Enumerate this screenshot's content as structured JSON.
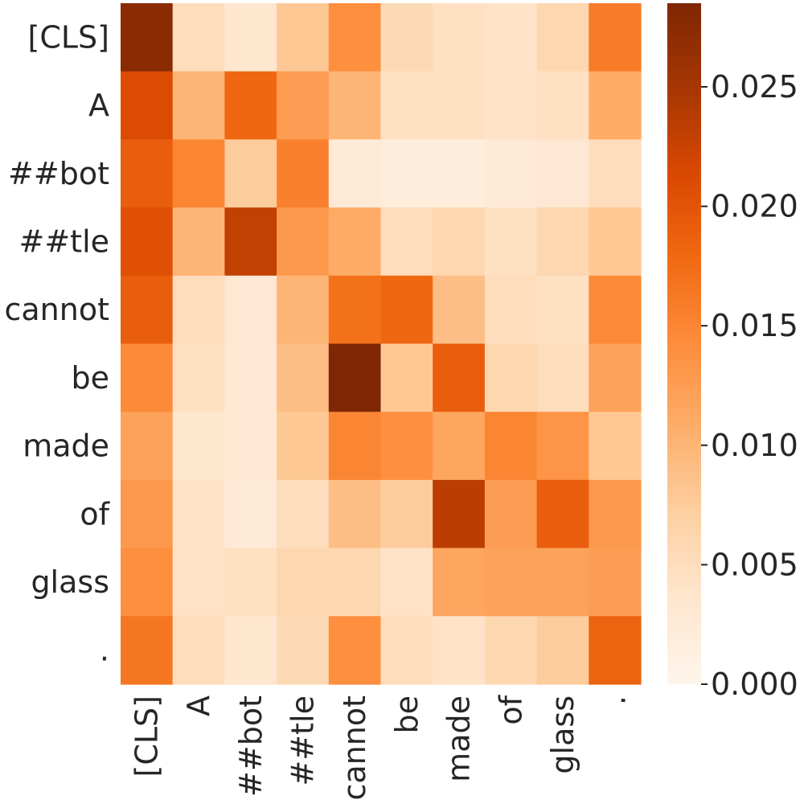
{
  "chart_data": {
    "type": "heatmap",
    "title": "",
    "xlabel": "",
    "ylabel": "",
    "x_labels": [
      "[CLS]",
      "A",
      "##bot",
      "##tle",
      "cannot",
      "be",
      "made",
      "of",
      "glass",
      "."
    ],
    "y_labels": [
      "[CLS]",
      "A",
      "##bot",
      "##tle",
      "cannot",
      "be",
      "made",
      "of",
      "glass",
      "."
    ],
    "values": [
      [
        0.0275,
        0.005,
        0.0035,
        0.008,
        0.014,
        0.0055,
        0.0045,
        0.004,
        0.006,
        0.016
      ],
      [
        0.021,
        0.01,
        0.018,
        0.0125,
        0.01,
        0.0045,
        0.0045,
        0.004,
        0.0045,
        0.011
      ],
      [
        0.019,
        0.015,
        0.0075,
        0.0155,
        0.0025,
        0.002,
        0.002,
        0.0025,
        0.003,
        0.005
      ],
      [
        0.0205,
        0.01,
        0.023,
        0.013,
        0.011,
        0.005,
        0.006,
        0.0045,
        0.006,
        0.008
      ],
      [
        0.019,
        0.005,
        0.003,
        0.01,
        0.017,
        0.018,
        0.009,
        0.005,
        0.0045,
        0.0145
      ],
      [
        0.0145,
        0.0045,
        0.003,
        0.009,
        0.0285,
        0.008,
        0.019,
        0.006,
        0.005,
        0.012
      ],
      [
        0.012,
        0.0035,
        0.003,
        0.008,
        0.015,
        0.014,
        0.0115,
        0.015,
        0.0135,
        0.008
      ],
      [
        0.013,
        0.004,
        0.0025,
        0.005,
        0.009,
        0.0075,
        0.0235,
        0.0125,
        0.019,
        0.013
      ],
      [
        0.014,
        0.004,
        0.0045,
        0.006,
        0.006,
        0.004,
        0.0115,
        0.012,
        0.012,
        0.0125
      ],
      [
        0.0165,
        0.005,
        0.0035,
        0.0055,
        0.014,
        0.005,
        0.004,
        0.006,
        0.0075,
        0.0185
      ]
    ],
    "colormap": "Oranges",
    "colorbar": {
      "min": 0.0,
      "max": 0.0285,
      "ticks": [
        0.0,
        0.005,
        0.01,
        0.015,
        0.02,
        0.025
      ],
      "tick_labels": [
        "0.000",
        "0.005",
        "0.010",
        "0.015",
        "0.020",
        "0.025"
      ]
    }
  }
}
